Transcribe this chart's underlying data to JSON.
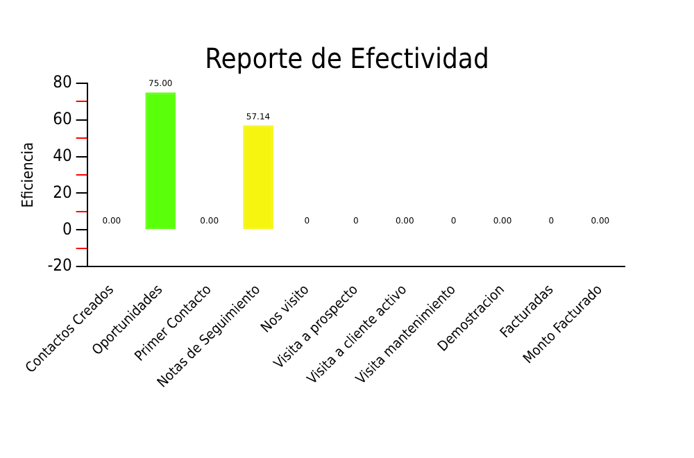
{
  "chart_data": {
    "type": "bar",
    "title": "Reporte de Efectividad",
    "ylabel": "Eficiencia",
    "categories": [
      "Contactos Creados",
      "Oportunidades",
      "Primer Contacto",
      "Notas de Seguimiento",
      "Nos visito",
      "Visita a prospecto",
      "Visita a cliente activo",
      "Visita mantenimiento",
      "Demostracion",
      "Facturadas",
      "Monto Facturado"
    ],
    "values": [
      0,
      75,
      0,
      57.14,
      0,
      0,
      0,
      0,
      0,
      0,
      0
    ],
    "value_labels": [
      "0.00",
      "75.00",
      "0.00",
      "57.14",
      "0",
      "0",
      "0.00",
      "0",
      "0.00",
      "0",
      "0.00"
    ],
    "colors": [
      "#ff0000",
      "#5aff0a",
      "#ff0000",
      "#f5f510",
      "#ff0000",
      "#ff0000",
      "#ff0000",
      "#ff0000",
      "#ff0000",
      "#ff0000",
      "#ff0000"
    ],
    "ylim": [
      -20,
      80
    ],
    "yticks": [
      -20,
      {
        "value": -10,
        "label": null
      },
      0,
      {
        "value": 10,
        "label": null
      },
      20,
      {
        "value": 30,
        "label": null
      },
      40,
      {
        "value": 50,
        "label": null
      },
      60,
      {
        "value": 70,
        "label": null
      },
      80
    ],
    "grid": false,
    "legend": false
  }
}
